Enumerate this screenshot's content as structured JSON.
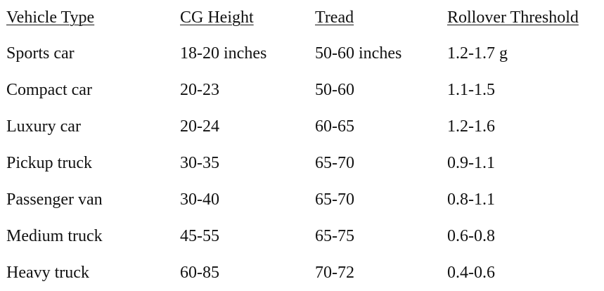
{
  "table": {
    "headers": [
      "Vehicle Type",
      "CG Height",
      "Tread",
      "Rollover Threshold"
    ],
    "rows": [
      [
        "Sports car",
        "18-20 inches",
        "50-60 inches",
        "1.2-1.7 g"
      ],
      [
        "Compact car",
        "20-23",
        "50-60",
        "1.1-1.5"
      ],
      [
        "Luxury car",
        "20-24",
        "60-65",
        "1.2-1.6"
      ],
      [
        "Pickup truck",
        "30-35",
        "65-70",
        "0.9-1.1"
      ],
      [
        "Passenger van",
        "30-40",
        "65-70",
        "0.8-1.1"
      ],
      [
        "Medium truck",
        "45-55",
        "65-75",
        "0.6-0.8"
      ],
      [
        "Heavy truck",
        "60-85",
        "70-72",
        "0.4-0.6"
      ]
    ]
  }
}
